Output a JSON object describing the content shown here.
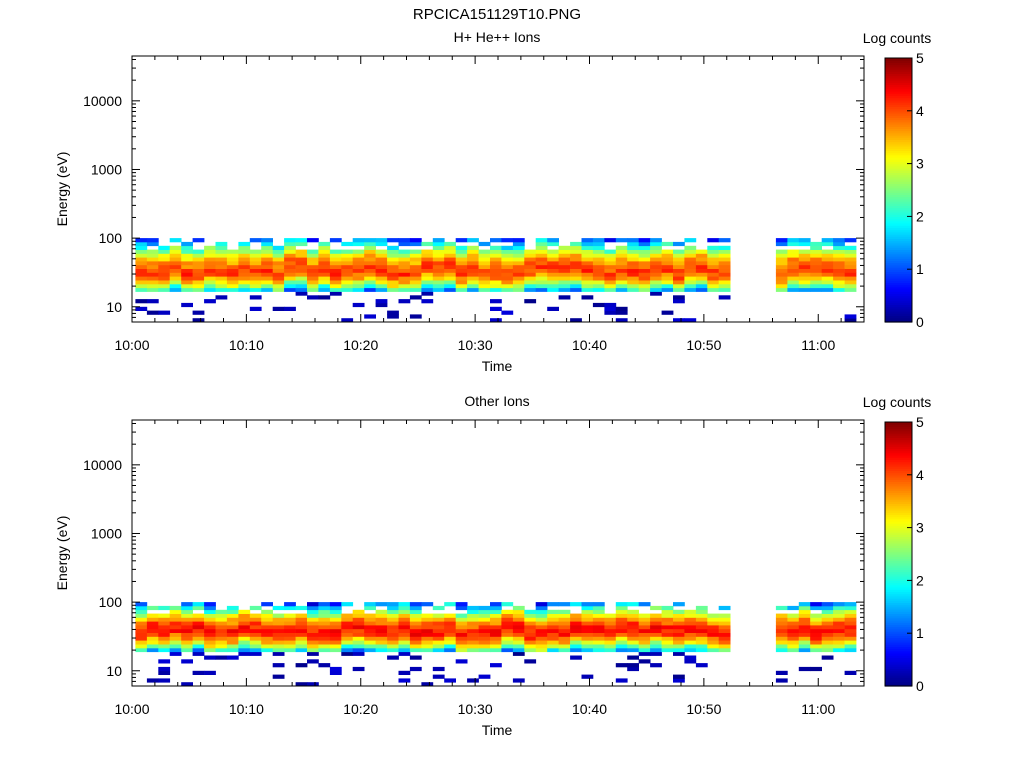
{
  "figure": {
    "title": "RPCICA151129T10.PNG"
  },
  "colormap": {
    "type": "jet",
    "stops": [
      "#00007f",
      "#0000ff",
      "#007fff",
      "#00ffff",
      "#7fff7f",
      "#ffff00",
      "#ff7f00",
      "#ff0000",
      "#7f0000"
    ]
  },
  "chart_data": [
    {
      "type": "heatmap",
      "title": "H+ He++ Ions",
      "xlabel": "Time",
      "ylabel": "Energy (eV)",
      "x_unit": "minutes after 10:00",
      "xlim": [
        0,
        64
      ],
      "ylim": [
        6,
        45000
      ],
      "yscale": "log",
      "x_ticks": [
        0,
        10,
        20,
        30,
        40,
        50,
        60
      ],
      "x_tick_labels": [
        "10:00",
        "10:10",
        "10:20",
        "10:30",
        "10:40",
        "10:50",
        "11:00"
      ],
      "y_ticks": [
        10,
        100,
        1000,
        10000
      ],
      "y_tick_labels": [
        "10",
        "100",
        "1000",
        "10000"
      ],
      "colorbar": {
        "label": "Log counts",
        "range": [
          0,
          5
        ],
        "ticks": [
          "0",
          "1",
          "2",
          "3",
          "4",
          "5"
        ]
      },
      "data_gap": [
        52.5,
        56
      ],
      "time_range": [
        0.3,
        62.5
      ],
      "band": {
        "peak_energy_eV": 34,
        "peak_log_counts": 3.6,
        "upper_edge_eV": 95,
        "lower_edge_eV": 16,
        "sparse_low_energy_eV": [
          6,
          15
        ]
      }
    },
    {
      "type": "heatmap",
      "title": "Other Ions",
      "xlabel": "Time",
      "ylabel": "Energy (eV)",
      "x_unit": "minutes after 10:00",
      "xlim": [
        0,
        64
      ],
      "ylim": [
        6,
        45000
      ],
      "yscale": "log",
      "x_ticks": [
        0,
        10,
        20,
        30,
        40,
        50,
        60
      ],
      "x_tick_labels": [
        "10:00",
        "10:10",
        "10:20",
        "10:30",
        "10:40",
        "10:50",
        "11:00"
      ],
      "y_ticks": [
        10,
        100,
        1000,
        10000
      ],
      "y_tick_labels": [
        "10",
        "100",
        "1000",
        "10000"
      ],
      "colorbar": {
        "label": "Log counts",
        "range": [
          0,
          5
        ],
        "ticks": [
          "0",
          "1",
          "2",
          "3",
          "4",
          "5"
        ]
      },
      "data_gap": [
        52.5,
        56
      ],
      "time_range": [
        0.3,
        62.5
      ],
      "band": {
        "peak_energy_eV": 38,
        "peak_log_counts": 3.8,
        "upper_edge_eV": 95,
        "lower_edge_eV": 18,
        "sparse_low_energy_eV": [
          6,
          15
        ]
      }
    }
  ]
}
